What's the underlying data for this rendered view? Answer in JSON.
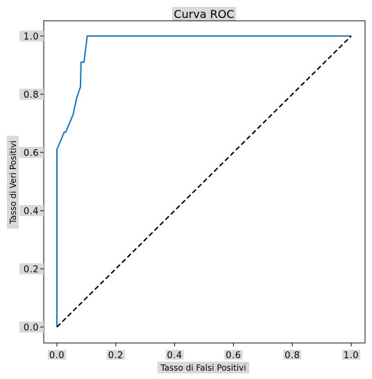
{
  "chart_data": {
    "type": "line",
    "title": "Curva ROC",
    "xlabel": "Tasso di Falsi Positivi",
    "ylabel": "Tasso di Veri Positivi",
    "xlim": [
      0.0,
      1.0
    ],
    "ylim": [
      0.0,
      1.0
    ],
    "xticks": [
      "0.0",
      "0.2",
      "0.4",
      "0.6",
      "0.8",
      "1.0"
    ],
    "yticks": [
      "0.0",
      "0.2",
      "0.4",
      "0.6",
      "0.8",
      "1.0"
    ],
    "grid": false,
    "series": [
      {
        "color": "#1f77b4",
        "style": "solid",
        "x": [
          0.0,
          0.0,
          0.0,
          0.025,
          0.03,
          0.055,
          0.068,
          0.08,
          0.08,
          0.082,
          0.092,
          0.092,
          0.103,
          0.103,
          1.0
        ],
        "y": [
          0.0,
          0.0,
          0.61,
          0.67,
          0.67,
          0.73,
          0.79,
          0.825,
          0.825,
          0.91,
          0.91,
          0.91,
          1.0,
          1.0,
          1.0
        ]
      },
      {
        "color": "#000000",
        "style": "dashed",
        "x": [
          0.0,
          1.0
        ],
        "y": [
          0.0,
          1.0
        ]
      }
    ]
  }
}
